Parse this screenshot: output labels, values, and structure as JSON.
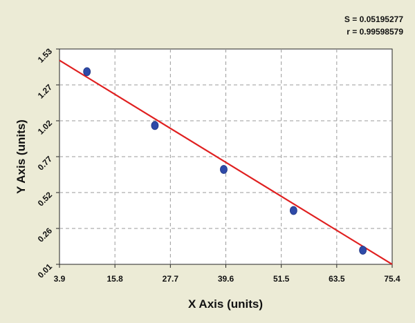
{
  "chart_data": {
    "type": "scatter",
    "xlabel": "X Axis (units)",
    "ylabel": "Y Axis (units)",
    "xlim": [
      3.9,
      75.4
    ],
    "ylim": [
      0.01,
      1.53
    ],
    "x_ticks": [
      "3.9",
      "15.8",
      "27.7",
      "39.6",
      "51.5",
      "63.5",
      "75.4"
    ],
    "y_ticks": [
      "0.01",
      "0.26",
      "0.52",
      "0.77",
      "1.02",
      "1.27",
      "1.53"
    ],
    "grid": true,
    "points": [
      {
        "x": 9.8,
        "y": 1.37
      },
      {
        "x": 24.4,
        "y": 0.99
      },
      {
        "x": 39.2,
        "y": 0.68
      },
      {
        "x": 54.2,
        "y": 0.39
      },
      {
        "x": 69.1,
        "y": 0.11
      }
    ],
    "fit_line": {
      "x": [
        3.9,
        75.4
      ],
      "y": [
        1.45,
        0.01
      ],
      "color": "#e02020"
    },
    "point_color": "#2e4aa8",
    "stats": {
      "s": "S = 0.05195277",
      "r": "r = 0.99598579"
    }
  }
}
